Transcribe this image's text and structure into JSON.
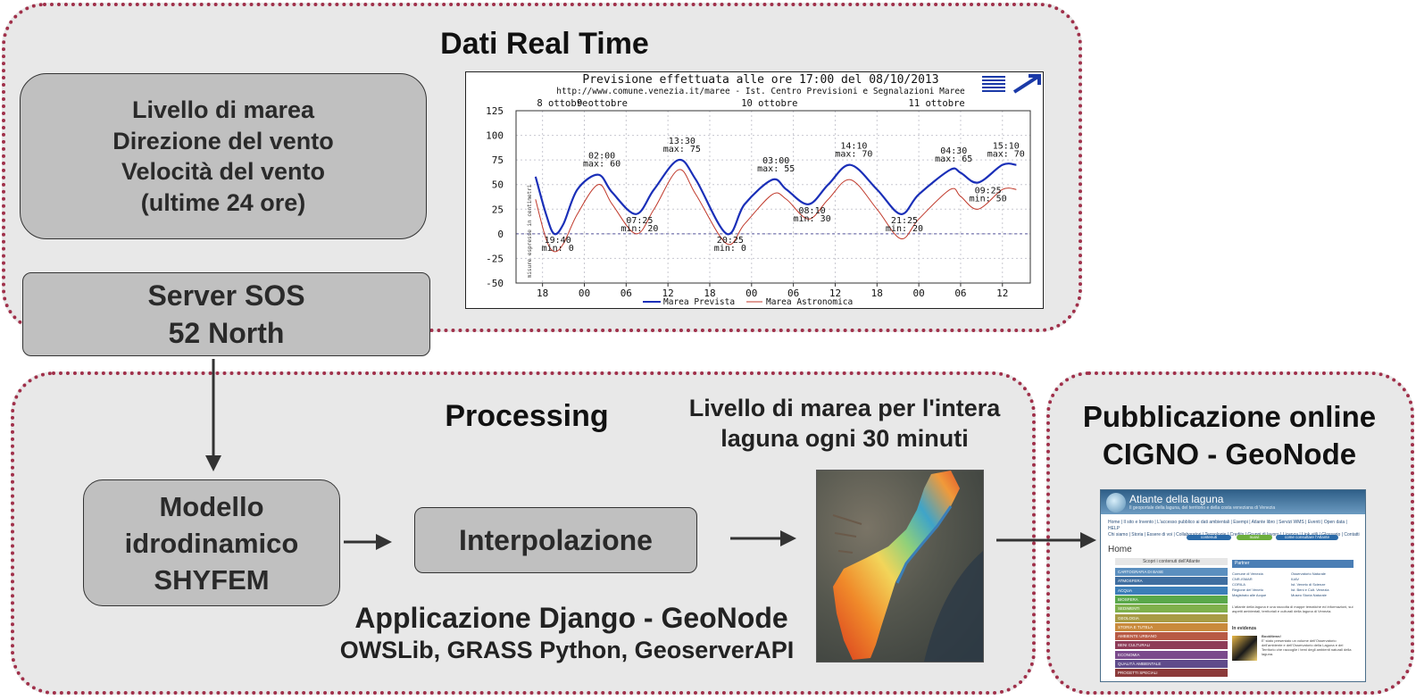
{
  "panels": {
    "realtime_title": "Dati Real Time",
    "processing_title": "Processing",
    "publication_title_lines": [
      "Pubblicazione online",
      "CIGNO - GeoNode"
    ]
  },
  "boxes": {
    "data_lines": [
      "Livello di marea",
      "Direzione del vento",
      "Velocità del vento",
      "(ultime 24 ore)"
    ],
    "server_lines": [
      "Server SOS",
      "52 North"
    ],
    "model_lines": [
      "Modello",
      "idrodinamico",
      "SHYFEM"
    ],
    "interp_label": "Interpolazione"
  },
  "labels": {
    "map_caption_lines": [
      "Livello di marea per l'intera",
      "laguna ogni 30 minuti"
    ],
    "django_title": "Applicazione Django - GeoNode",
    "django_sub": "OWSLib, GRASS Python, GeoserverAPI"
  },
  "chart_data": {
    "type": "line",
    "title": "Previsione effettuata alle ore 17:00 del 08/10/2013",
    "subtitle": "http://www.comune.venezia.it/maree - Ist. Centro Previsioni e Segnalazioni Maree",
    "ylabel": "misure espresse in centimetri",
    "ylim": [
      -50,
      125
    ],
    "yticks": [
      125,
      100,
      75,
      50,
      25,
      0,
      -25,
      -50
    ],
    "xticks": [
      "18",
      "00",
      "06",
      "12",
      "18",
      "00",
      "06",
      "12",
      "18",
      "00",
      "06",
      "12"
    ],
    "x_hours": [
      18,
      24,
      30,
      36,
      42,
      48,
      54,
      60,
      66,
      72,
      78,
      84
    ],
    "date_labels": [
      {
        "text": "8 ottobre",
        "hour": 17
      },
      {
        "text": "9 ottobre",
        "hour": 24
      },
      {
        "text": "10 ottobre",
        "hour": 48
      },
      {
        "text": "11 ottobre",
        "hour": 72
      }
    ],
    "grid": true,
    "legend": "bottom",
    "series": [
      {
        "name": "Marea Prevista",
        "color": "#1a2fb8",
        "points": [
          [
            17,
            58
          ],
          [
            18.5,
            20
          ],
          [
            19.67,
            0
          ],
          [
            21,
            10
          ],
          [
            23,
            45
          ],
          [
            26,
            60
          ],
          [
            28,
            42
          ],
          [
            31.42,
            20
          ],
          [
            34,
            45
          ],
          [
            37.5,
            75
          ],
          [
            40,
            55
          ],
          [
            44.42,
            0
          ],
          [
            47,
            30
          ],
          [
            51,
            55
          ],
          [
            53,
            45
          ],
          [
            56.17,
            30
          ],
          [
            59,
            50
          ],
          [
            62.17,
            70
          ],
          [
            66,
            45
          ],
          [
            69.42,
            20
          ],
          [
            72,
            40
          ],
          [
            76.5,
            65
          ],
          [
            78,
            62
          ],
          [
            80.5,
            52
          ],
          [
            84,
            70
          ],
          [
            86,
            70
          ]
        ]
      },
      {
        "name": "Marea Astronomica",
        "color": "#c0392b",
        "points": [
          [
            17,
            35
          ],
          [
            18.5,
            -5
          ],
          [
            19.67,
            -18
          ],
          [
            21,
            -10
          ],
          [
            23,
            20
          ],
          [
            26,
            50
          ],
          [
            28,
            30
          ],
          [
            31.42,
            0
          ],
          [
            34,
            25
          ],
          [
            37.5,
            65
          ],
          [
            40,
            40
          ],
          [
            44.42,
            -10
          ],
          [
            47,
            10
          ],
          [
            51,
            40
          ],
          [
            53,
            35
          ],
          [
            56.17,
            15
          ],
          [
            59,
            35
          ],
          [
            62.17,
            55
          ],
          [
            66,
            25
          ],
          [
            69.42,
            -5
          ],
          [
            72,
            15
          ],
          [
            76.5,
            45
          ],
          [
            78,
            38
          ],
          [
            80.5,
            25
          ],
          [
            84,
            45
          ],
          [
            86,
            45
          ]
        ]
      }
    ],
    "annotations": [
      {
        "lines": [
          "02:00",
          "max: 60"
        ],
        "hour": 26,
        "value": 60
      },
      {
        "lines": [
          "13:30",
          "max: 75"
        ],
        "hour": 37.5,
        "value": 75
      },
      {
        "lines": [
          "03:00",
          "max: 55"
        ],
        "hour": 51,
        "value": 55
      },
      {
        "lines": [
          "14:10",
          "max: 70"
        ],
        "hour": 62.17,
        "value": 70
      },
      {
        "lines": [
          "04:30",
          "max: 65"
        ],
        "hour": 76.5,
        "value": 65
      },
      {
        "lines": [
          "15:10",
          "max: 70"
        ],
        "hour": 84,
        "value": 70
      },
      {
        "lines": [
          "19:40",
          "min: 0"
        ],
        "hour": 19.67,
        "value": 0
      },
      {
        "lines": [
          "07:25",
          "min: 20"
        ],
        "hour": 31.42,
        "value": 20
      },
      {
        "lines": [
          "20:25",
          "min: 0"
        ],
        "hour": 44.42,
        "value": 0
      },
      {
        "lines": [
          "08:10",
          "min: 30"
        ],
        "hour": 56.17,
        "value": 30
      },
      {
        "lines": [
          "21:25",
          "min: 20"
        ],
        "hour": 69.42,
        "value": 20
      },
      {
        "lines": [
          "09:25",
          "min: 50"
        ],
        "hour": 81.42,
        "value": 50
      }
    ]
  },
  "website": {
    "title": "Atlante della laguna",
    "subtitle": "Il geoportale della laguna, del territorio e della costa veneziana di Venezia",
    "nav_lines": [
      "Home | Il sito e Invento | L'accesso pubblico ai dati ambientali | Esempi | Atlante libro | Servizi WMS | Eventi | Open data | HELP",
      "Chi siamo | Storia | Essere di voi | Collaboratori | Tecnologie | Credits | Gruppi di lavoro | Licenza | Link utili | Glossario | Contatti"
    ],
    "buttons": [
      "contenuti",
      "nuovi",
      "come consultare l'Atlante"
    ],
    "button_colors": [
      "#2a6aa8",
      "#6cae3c",
      "#2a6aa8"
    ],
    "home_label": "Home",
    "left_header": "Scopri i contenuti dell'Atlante",
    "categories": [
      "CARTOGRAFIA DI BASE",
      "ATMOSFERA",
      "ACQUA",
      "BIOSFERA",
      "SEDIMENTI",
      "GEOLOGIA",
      "STORIA E TUTELA",
      "AMBIENTE URBANO",
      "BENI CULTURALI",
      "ECONOMIA",
      "QUALITÀ AMBIENTALE",
      "PROGETTI SPECIALI"
    ],
    "category_colors": [
      "#5b8fbf",
      "#3f6ea0",
      "#3c7eb8",
      "#5aa84a",
      "#7fb04c",
      "#a89b45",
      "#c98a3c",
      "#b85a44",
      "#8e3b57",
      "#7a4a8c",
      "#5f4b8b",
      "#8b3a3a"
    ],
    "right_header": "Partner",
    "partners": [
      "Comune di Venezia",
      "Osservatorio Naturale",
      "CNR-ISMAR",
      "IUAV",
      "CORILA",
      "Ist. Veneto di Scienze",
      "Regione del Veneto",
      "Ist. Beni e Cult. Venezia",
      "Magistrato alle Acque",
      "Museo Storia Naturale"
    ],
    "paragraph": "L'atlante della laguna è una raccolta di mappe tematiche ed informazioni, sui aspetti ambientali, territoriali e culturali della laguna di Venezia.",
    "evidence_label": "In evidenza",
    "news_title": "BookNews!",
    "news_text": "E' stato presentato un volume dell'Osservatorio dell'ambiente e dell'Osservatorio della Laguna e del Territorio che raccoglie i temi degli ambienti naturali della laguna."
  }
}
